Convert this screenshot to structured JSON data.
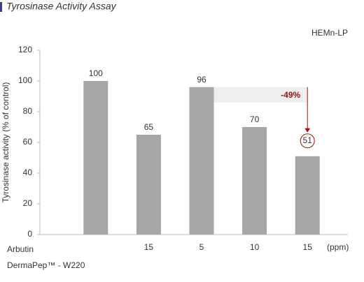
{
  "chart_data": {
    "type": "bar",
    "title": "Tyrosinase Activity Assay",
    "subtitle": "HEMn-LP",
    "y_label": "Tyrosinase activity (% of control)",
    "categories": [
      null,
      "15",
      "5",
      "10",
      "15"
    ],
    "row_labels": [
      "Arbutin",
      "DermaPep™ - W220"
    ],
    "x_unit": "(ppm)",
    "values": [
      100,
      65,
      96,
      70,
      51
    ],
    "color": "#a6a6a6",
    "ylim": [
      0,
      120
    ],
    "yticks": [
      0,
      20,
      40,
      60,
      80,
      100,
      120
    ],
    "grid": false,
    "annotation": "-49%",
    "annotation_color": "#a01010"
  }
}
